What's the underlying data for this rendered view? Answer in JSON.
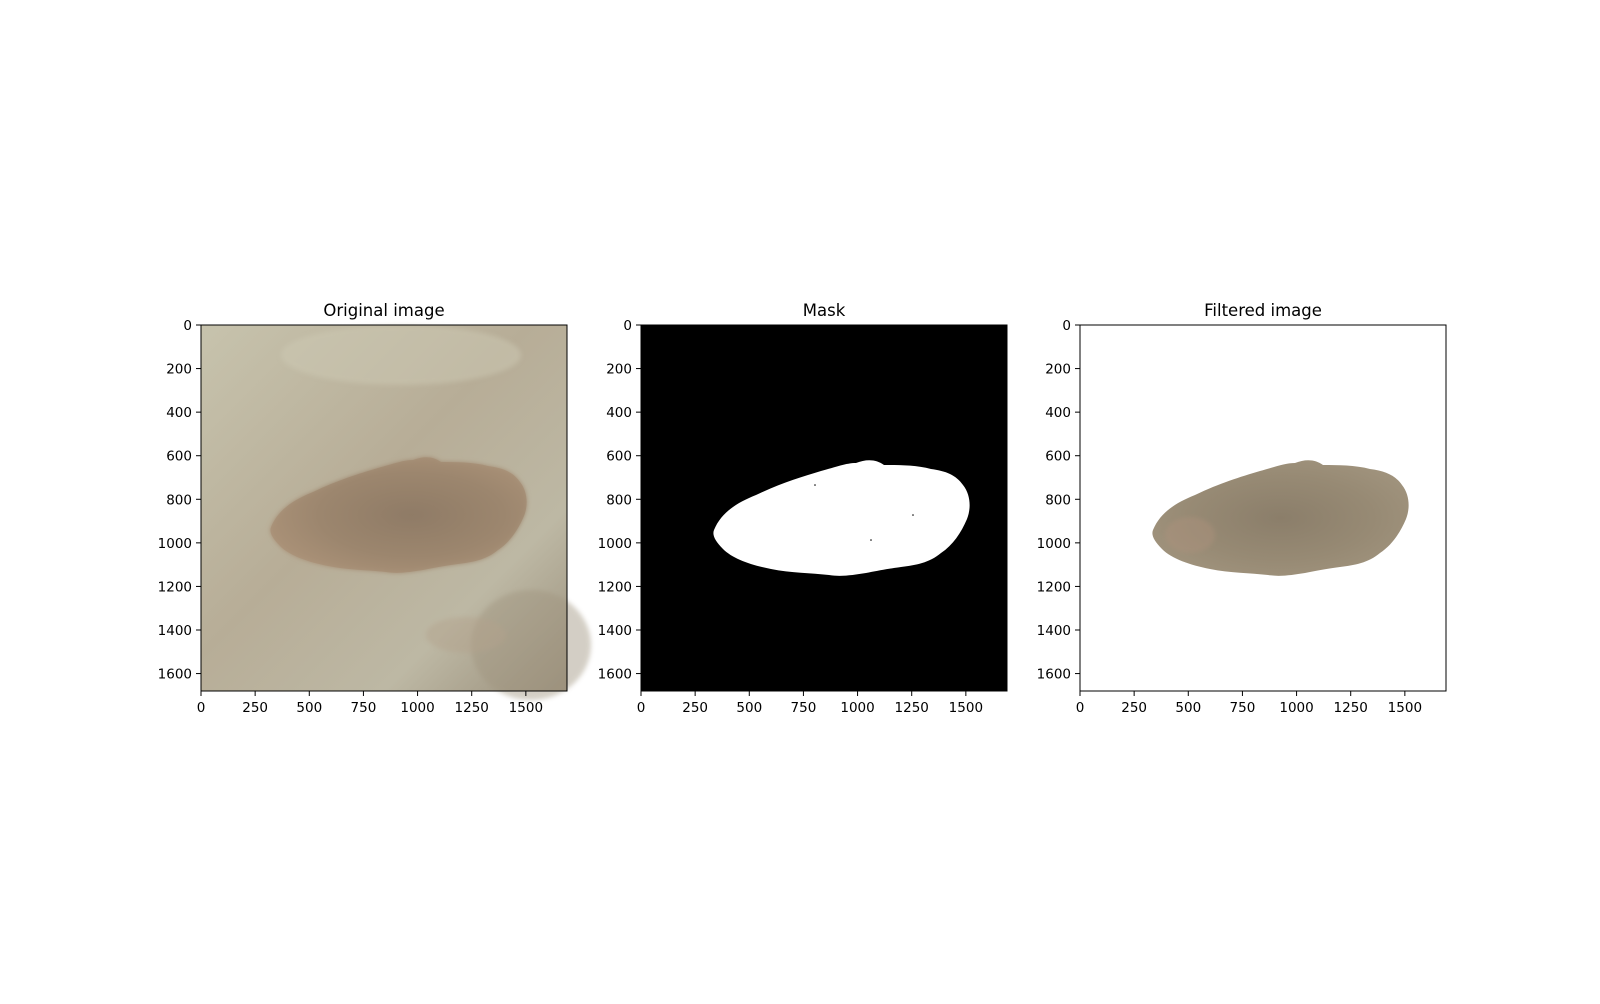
{
  "figure": {
    "panels": [
      {
        "id": "original",
        "title": "Original image",
        "x_ticks": [
          "0",
          "250",
          "500",
          "750",
          "1000",
          "1250",
          "1500"
        ],
        "y_ticks": [
          "0",
          "200",
          "400",
          "600",
          "800",
          "1000",
          "1200",
          "1400",
          "1600"
        ]
      },
      {
        "id": "mask",
        "title": "Mask",
        "x_ticks": [
          "0",
          "250",
          "500",
          "750",
          "1000",
          "1250",
          "1500"
        ],
        "y_ticks": [
          "0",
          "200",
          "400",
          "600",
          "800",
          "1000",
          "1200",
          "1400",
          "1600"
        ]
      },
      {
        "id": "filtered",
        "title": "Filtered image",
        "x_ticks": [
          "0",
          "250",
          "500",
          "750",
          "1000",
          "1250",
          "1500"
        ],
        "y_ticks": [
          "0",
          "200",
          "400",
          "600",
          "800",
          "1000",
          "1200",
          "1400",
          "1600"
        ]
      }
    ],
    "axis_range": {
      "x": [
        0,
        1690
      ],
      "y": [
        0,
        1680
      ]
    },
    "colors": {
      "skin_light": "#c5c0ac",
      "skin_mid": "#b4a993",
      "skin_dark": "#958b77",
      "lesion_light": "#ab9278",
      "lesion_dark": "#8f7b66",
      "filtered_lesion_light": "#a1947e",
      "filtered_lesion_dark": "#8b7e6a",
      "mask_background": "#000000",
      "mask_foreground": "#ffffff"
    }
  }
}
